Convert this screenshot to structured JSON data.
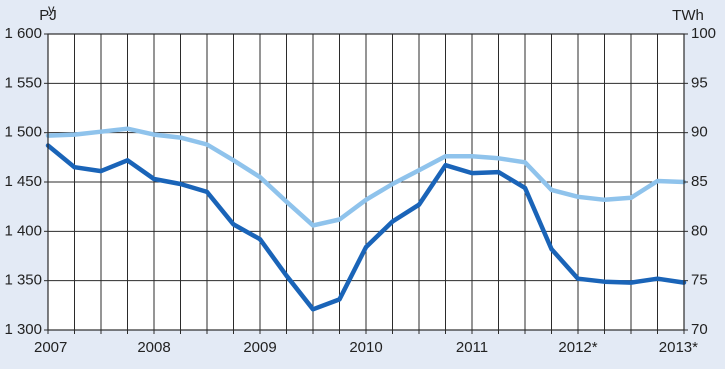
{
  "chart_data": {
    "type": "line",
    "header_text": "y",
    "left_unit": "PJ",
    "right_unit": "TWh",
    "left_axis": {
      "min": 1300,
      "max": 1600,
      "ticks": [
        1300,
        1350,
        1400,
        1450,
        1500,
        1550,
        1600
      ],
      "tick_labels": [
        "1 300",
        "1 350",
        "1 400",
        "1 450",
        "1 500",
        "1 550",
        "1 600"
      ]
    },
    "right_axis": {
      "min": 70,
      "max": 100,
      "ticks": [
        70,
        75,
        80,
        85,
        90,
        95,
        100
      ],
      "tick_labels": [
        "70",
        "75",
        "80",
        "85",
        "90",
        "95",
        "100"
      ]
    },
    "x_axis": {
      "min": 2007,
      "max": 2013,
      "ticks": [
        2007,
        2008,
        2009,
        2010,
        2011,
        2012,
        2013
      ],
      "tick_labels": [
        "2007",
        "2008",
        "2009",
        "2010",
        "2011",
        "2012*",
        "2013*"
      ]
    },
    "grid": true,
    "series": [
      {
        "axis": "left",
        "color": "#8fc3ec",
        "x": [
          2007,
          2007.25,
          2007.5,
          2007.75,
          2008,
          2008.25,
          2008.5,
          2008.75,
          2009,
          2009.25,
          2009.5,
          2009.75,
          2010,
          2010.25,
          2010.5,
          2010.75,
          2011,
          2011.25,
          2011.5,
          2011.75,
          2012,
          2012.25,
          2012.5,
          2012.75,
          2013
        ],
        "values": [
          1497,
          1498,
          1501,
          1504,
          1498,
          1495,
          1488,
          1472,
          1455,
          1430,
          1406,
          1412,
          1432,
          1448,
          1462,
          1476,
          1476,
          1474,
          1470,
          1442,
          1435,
          1432,
          1434,
          1451,
          1450
        ]
      },
      {
        "axis": "left",
        "color": "#1a64b8",
        "x": [
          2007,
          2007.25,
          2007.5,
          2007.75,
          2008,
          2008.25,
          2008.5,
          2008.75,
          2009,
          2009.25,
          2009.5,
          2009.75,
          2010,
          2010.25,
          2010.5,
          2010.75,
          2011,
          2011.25,
          2011.5,
          2011.75,
          2012,
          2012.25,
          2012.5,
          2012.75,
          2013
        ],
        "values": [
          1487,
          1465,
          1461,
          1472,
          1453,
          1448,
          1440,
          1407,
          1392,
          1355,
          1321,
          1331,
          1384,
          1410,
          1427,
          1467,
          1459,
          1460,
          1444,
          1382,
          1352,
          1349,
          1348,
          1352,
          1348
        ]
      }
    ]
  }
}
